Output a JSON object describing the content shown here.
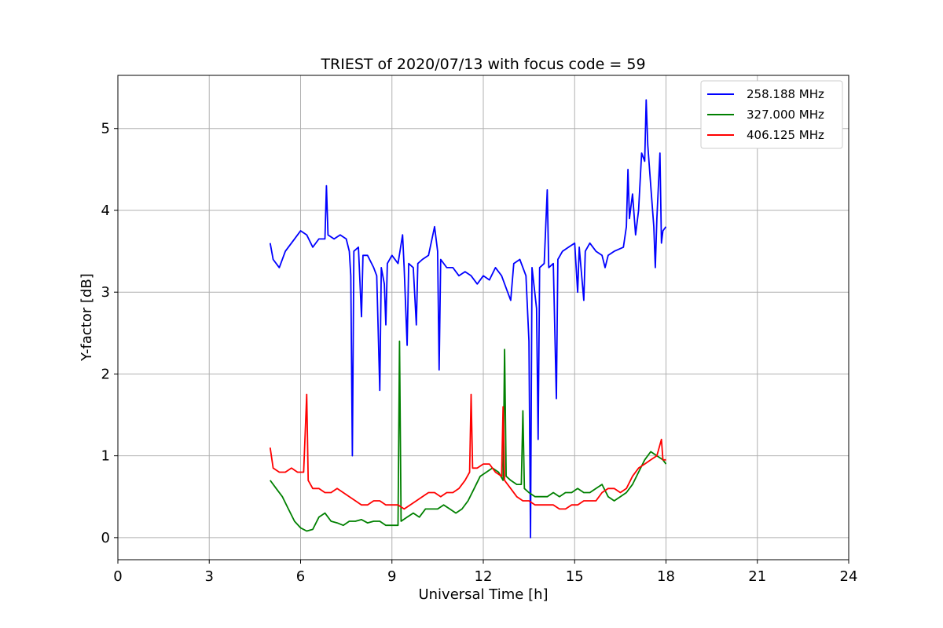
{
  "chart_data": {
    "type": "line",
    "title": "TRIEST of 2020/07/13 with focus code = 59",
    "xlabel": "Universal Time [h]",
    "ylabel": "Y-factor [dB]",
    "xlim": [
      0,
      24
    ],
    "ylim": [
      -0.27,
      5.65
    ],
    "xticks": [
      0,
      3,
      6,
      9,
      12,
      15,
      18,
      21,
      24
    ],
    "yticks": [
      0,
      1,
      2,
      3,
      4,
      5
    ],
    "grid": true,
    "legend_position": "top-right",
    "series": [
      {
        "name": "258.188 MHz",
        "color": "#0000ff",
        "points": [
          [
            5.0,
            3.6
          ],
          [
            5.1,
            3.4
          ],
          [
            5.3,
            3.3
          ],
          [
            5.5,
            3.5
          ],
          [
            5.8,
            3.65
          ],
          [
            6.0,
            3.75
          ],
          [
            6.2,
            3.7
          ],
          [
            6.4,
            3.55
          ],
          [
            6.6,
            3.65
          ],
          [
            6.8,
            3.65
          ],
          [
            6.85,
            4.3
          ],
          [
            6.9,
            3.7
          ],
          [
            7.1,
            3.65
          ],
          [
            7.3,
            3.7
          ],
          [
            7.5,
            3.65
          ],
          [
            7.6,
            3.5
          ],
          [
            7.65,
            3.2
          ],
          [
            7.7,
            1.0
          ],
          [
            7.75,
            3.5
          ],
          [
            7.9,
            3.55
          ],
          [
            8.0,
            2.7
          ],
          [
            8.05,
            3.45
          ],
          [
            8.2,
            3.45
          ],
          [
            8.4,
            3.3
          ],
          [
            8.5,
            3.2
          ],
          [
            8.6,
            1.8
          ],
          [
            8.65,
            3.3
          ],
          [
            8.75,
            3.1
          ],
          [
            8.8,
            2.6
          ],
          [
            8.85,
            3.35
          ],
          [
            9.0,
            3.45
          ],
          [
            9.2,
            3.35
          ],
          [
            9.35,
            3.7
          ],
          [
            9.4,
            3.3
          ],
          [
            9.5,
            2.35
          ],
          [
            9.55,
            3.35
          ],
          [
            9.7,
            3.3
          ],
          [
            9.8,
            2.6
          ],
          [
            9.85,
            3.35
          ],
          [
            10.0,
            3.4
          ],
          [
            10.2,
            3.45
          ],
          [
            10.4,
            3.8
          ],
          [
            10.5,
            3.5
          ],
          [
            10.55,
            2.05
          ],
          [
            10.6,
            3.4
          ],
          [
            10.8,
            3.3
          ],
          [
            11.0,
            3.3
          ],
          [
            11.2,
            3.2
          ],
          [
            11.4,
            3.25
          ],
          [
            11.6,
            3.2
          ],
          [
            11.8,
            3.1
          ],
          [
            12.0,
            3.2
          ],
          [
            12.2,
            3.15
          ],
          [
            12.4,
            3.3
          ],
          [
            12.6,
            3.2
          ],
          [
            12.8,
            3.0
          ],
          [
            12.9,
            2.9
          ],
          [
            13.0,
            3.35
          ],
          [
            13.2,
            3.4
          ],
          [
            13.4,
            3.2
          ],
          [
            13.5,
            2.4
          ],
          [
            13.55,
            0.0
          ],
          [
            13.6,
            3.3
          ],
          [
            13.75,
            2.8
          ],
          [
            13.8,
            1.2
          ],
          [
            13.85,
            3.3
          ],
          [
            14.0,
            3.35
          ],
          [
            14.1,
            4.25
          ],
          [
            14.15,
            3.3
          ],
          [
            14.3,
            3.35
          ],
          [
            14.4,
            1.7
          ],
          [
            14.45,
            3.4
          ],
          [
            14.6,
            3.5
          ],
          [
            14.8,
            3.55
          ],
          [
            15.0,
            3.6
          ],
          [
            15.1,
            3.0
          ],
          [
            15.15,
            3.55
          ],
          [
            15.3,
            2.9
          ],
          [
            15.35,
            3.5
          ],
          [
            15.5,
            3.6
          ],
          [
            15.7,
            3.5
          ],
          [
            15.9,
            3.45
          ],
          [
            16.0,
            3.3
          ],
          [
            16.1,
            3.45
          ],
          [
            16.3,
            3.5
          ],
          [
            16.6,
            3.55
          ],
          [
            16.7,
            3.8
          ],
          [
            16.75,
            4.5
          ],
          [
            16.8,
            3.9
          ],
          [
            16.9,
            4.2
          ],
          [
            17.0,
            3.7
          ],
          [
            17.1,
            4.0
          ],
          [
            17.2,
            4.7
          ],
          [
            17.3,
            4.6
          ],
          [
            17.35,
            5.35
          ],
          [
            17.4,
            4.8
          ],
          [
            17.5,
            4.3
          ],
          [
            17.6,
            3.8
          ],
          [
            17.65,
            3.3
          ],
          [
            17.7,
            3.9
          ],
          [
            17.8,
            4.7
          ],
          [
            17.85,
            3.6
          ],
          [
            17.9,
            3.75
          ],
          [
            18.0,
            3.8
          ]
        ]
      },
      {
        "name": "327.000 MHz",
        "color": "#008000",
        "points": [
          [
            5.0,
            0.7
          ],
          [
            5.2,
            0.6
          ],
          [
            5.4,
            0.5
          ],
          [
            5.6,
            0.35
          ],
          [
            5.8,
            0.2
          ],
          [
            6.0,
            0.12
          ],
          [
            6.2,
            0.08
          ],
          [
            6.4,
            0.1
          ],
          [
            6.6,
            0.25
          ],
          [
            6.8,
            0.3
          ],
          [
            7.0,
            0.2
          ],
          [
            7.2,
            0.18
          ],
          [
            7.4,
            0.15
          ],
          [
            7.6,
            0.2
          ],
          [
            7.8,
            0.2
          ],
          [
            8.0,
            0.22
          ],
          [
            8.2,
            0.18
          ],
          [
            8.4,
            0.2
          ],
          [
            8.6,
            0.2
          ],
          [
            8.8,
            0.15
          ],
          [
            9.0,
            0.15
          ],
          [
            9.2,
            0.15
          ],
          [
            9.25,
            2.4
          ],
          [
            9.3,
            0.2
          ],
          [
            9.5,
            0.25
          ],
          [
            9.7,
            0.3
          ],
          [
            9.9,
            0.25
          ],
          [
            10.1,
            0.35
          ],
          [
            10.3,
            0.35
          ],
          [
            10.5,
            0.35
          ],
          [
            10.7,
            0.4
          ],
          [
            10.9,
            0.35
          ],
          [
            11.1,
            0.3
          ],
          [
            11.3,
            0.35
          ],
          [
            11.5,
            0.45
          ],
          [
            11.7,
            0.6
          ],
          [
            11.9,
            0.75
          ],
          [
            12.1,
            0.8
          ],
          [
            12.3,
            0.85
          ],
          [
            12.5,
            0.8
          ],
          [
            12.65,
            0.7
          ],
          [
            12.7,
            2.3
          ],
          [
            12.75,
            0.75
          ],
          [
            12.9,
            0.7
          ],
          [
            13.1,
            0.65
          ],
          [
            13.25,
            0.65
          ],
          [
            13.3,
            1.55
          ],
          [
            13.35,
            0.6
          ],
          [
            13.5,
            0.55
          ],
          [
            13.7,
            0.5
          ],
          [
            13.9,
            0.5
          ],
          [
            14.1,
            0.5
          ],
          [
            14.3,
            0.55
          ],
          [
            14.5,
            0.5
          ],
          [
            14.7,
            0.55
          ],
          [
            14.9,
            0.55
          ],
          [
            15.1,
            0.6
          ],
          [
            15.3,
            0.55
          ],
          [
            15.5,
            0.55
          ],
          [
            15.7,
            0.6
          ],
          [
            15.9,
            0.65
          ],
          [
            16.1,
            0.5
          ],
          [
            16.3,
            0.45
          ],
          [
            16.5,
            0.5
          ],
          [
            16.7,
            0.55
          ],
          [
            16.9,
            0.65
          ],
          [
            17.1,
            0.8
          ],
          [
            17.3,
            0.95
          ],
          [
            17.5,
            1.05
          ],
          [
            17.7,
            1.0
          ],
          [
            17.9,
            0.95
          ],
          [
            18.0,
            0.9
          ]
        ]
      },
      {
        "name": "406.125 MHz",
        "color": "#ff0000",
        "points": [
          [
            5.0,
            1.1
          ],
          [
            5.1,
            0.85
          ],
          [
            5.3,
            0.8
          ],
          [
            5.5,
            0.8
          ],
          [
            5.7,
            0.85
          ],
          [
            5.9,
            0.8
          ],
          [
            6.1,
            0.8
          ],
          [
            6.2,
            1.75
          ],
          [
            6.25,
            0.7
          ],
          [
            6.4,
            0.6
          ],
          [
            6.6,
            0.6
          ],
          [
            6.8,
            0.55
          ],
          [
            7.0,
            0.55
          ],
          [
            7.2,
            0.6
          ],
          [
            7.4,
            0.55
          ],
          [
            7.6,
            0.5
          ],
          [
            7.8,
            0.45
          ],
          [
            8.0,
            0.4
          ],
          [
            8.2,
            0.4
          ],
          [
            8.4,
            0.45
          ],
          [
            8.6,
            0.45
          ],
          [
            8.8,
            0.4
          ],
          [
            9.0,
            0.4
          ],
          [
            9.2,
            0.4
          ],
          [
            9.4,
            0.35
          ],
          [
            9.6,
            0.4
          ],
          [
            9.8,
            0.45
          ],
          [
            10.0,
            0.5
          ],
          [
            10.2,
            0.55
          ],
          [
            10.4,
            0.55
          ],
          [
            10.6,
            0.5
          ],
          [
            10.8,
            0.55
          ],
          [
            11.0,
            0.55
          ],
          [
            11.2,
            0.6
          ],
          [
            11.4,
            0.7
          ],
          [
            11.55,
            0.8
          ],
          [
            11.6,
            1.75
          ],
          [
            11.65,
            0.85
          ],
          [
            11.8,
            0.85
          ],
          [
            12.0,
            0.9
          ],
          [
            12.2,
            0.9
          ],
          [
            12.4,
            0.8
          ],
          [
            12.6,
            0.75
          ],
          [
            12.65,
            1.6
          ],
          [
            12.7,
            0.7
          ],
          [
            12.9,
            0.6
          ],
          [
            13.1,
            0.5
          ],
          [
            13.3,
            0.45
          ],
          [
            13.5,
            0.45
          ],
          [
            13.7,
            0.4
          ],
          [
            13.9,
            0.4
          ],
          [
            14.1,
            0.4
          ],
          [
            14.3,
            0.4
          ],
          [
            14.5,
            0.35
          ],
          [
            14.7,
            0.35
          ],
          [
            14.9,
            0.4
          ],
          [
            15.1,
            0.4
          ],
          [
            15.3,
            0.45
          ],
          [
            15.5,
            0.45
          ],
          [
            15.7,
            0.45
          ],
          [
            15.9,
            0.55
          ],
          [
            16.1,
            0.6
          ],
          [
            16.3,
            0.6
          ],
          [
            16.5,
            0.55
          ],
          [
            16.7,
            0.6
          ],
          [
            16.9,
            0.75
          ],
          [
            17.1,
            0.85
          ],
          [
            17.3,
            0.9
          ],
          [
            17.5,
            0.95
          ],
          [
            17.7,
            1.0
          ],
          [
            17.85,
            1.2
          ],
          [
            17.9,
            0.95
          ],
          [
            18.0,
            0.95
          ]
        ]
      }
    ]
  }
}
